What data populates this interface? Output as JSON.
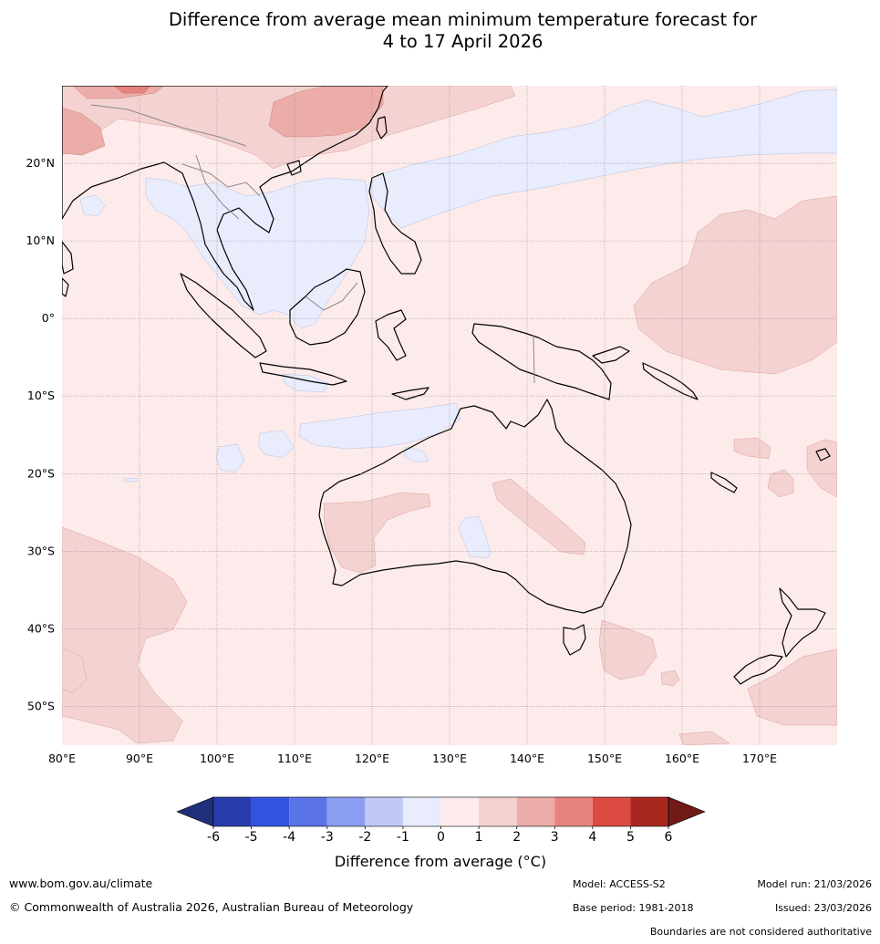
{
  "title_line1": "Difference from average mean minimum temperature forecast for",
  "title_line2": "4 to 17 April 2026",
  "axes": {
    "lon_labels": [
      "80°E",
      "90°E",
      "100°E",
      "110°E",
      "120°E",
      "130°E",
      "140°E",
      "150°E",
      "160°E",
      "170°E"
    ],
    "lat_labels": [
      "20°N",
      "10°N",
      "0°",
      "10°S",
      "20°S",
      "30°S",
      "40°S",
      "50°S"
    ]
  },
  "colorbar": {
    "title": "Difference from average (°C)",
    "ticks": [
      "-6",
      "-5",
      "-4",
      "-3",
      "-2",
      "-1",
      "0",
      "1",
      "2",
      "3",
      "4",
      "5",
      "6"
    ],
    "colors": [
      "#1f2f7a",
      "#2a3cab",
      "#3153e0",
      "#5a74e6",
      "#8a9df0",
      "#c0c8f5",
      "#e8ecfc",
      "#fcebea",
      "#f4d2d1",
      "#ecaca8",
      "#e6837e",
      "#da4a40",
      "#a8281f",
      "#711b17"
    ]
  },
  "chart_data": {
    "type": "heatmap",
    "title": "Difference from average mean minimum temperature forecast for 4 to 17 April 2026",
    "variable": "Difference from average (°C)",
    "lon_range": [
      80,
      180
    ],
    "lat_range": [
      -55,
      30
    ],
    "levels": [
      -6,
      -5,
      -4,
      -3,
      -2,
      -1,
      0,
      1,
      2,
      3,
      4,
      5,
      6
    ],
    "lon_ticks": [
      80,
      90,
      100,
      110,
      120,
      130,
      140,
      150,
      160,
      170
    ],
    "lat_ticks": [
      20,
      10,
      0,
      -10,
      -20,
      -30,
      -40,
      -50
    ]
  },
  "footer": {
    "website": "www.bom.gov.au/climate",
    "copyright": "© Commonwealth of Australia 2026, Australian Bureau of Meteorology",
    "model": "Model: ACCESS-S2",
    "base_period": "Base period: 1981-2018",
    "model_run": "Model run: 21/03/2026",
    "issued": "Issued: 23/03/2026",
    "disclaimer": "Boundaries are not considered authoritative"
  }
}
